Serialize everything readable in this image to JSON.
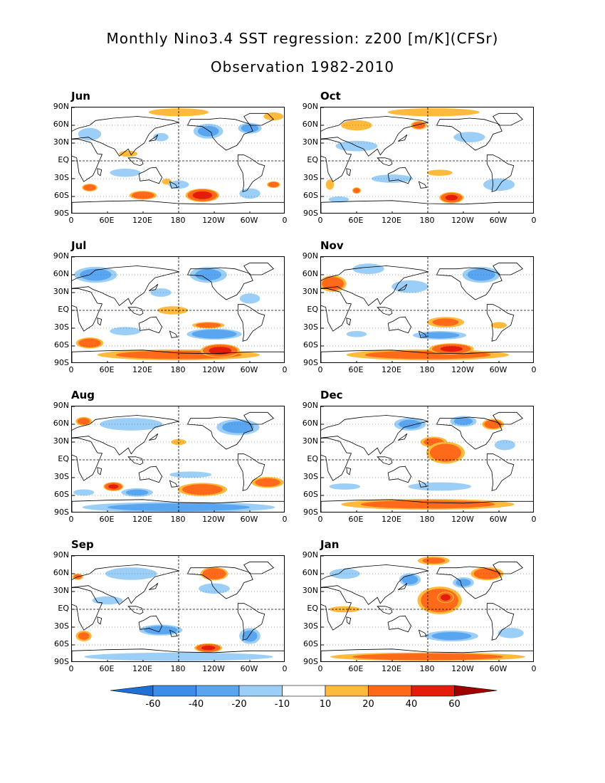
{
  "title_line1": "Monthly Nino3.4 SST regression: z200 [m/K](CFSr)",
  "title_line2": "Observation 1982-2010",
  "y_ticks": [
    "90N",
    "60N",
    "30N",
    "EQ",
    "30S",
    "60S",
    "90S"
  ],
  "x_ticks": [
    "0",
    "60E",
    "120E",
    "180",
    "120W",
    "60W",
    "0"
  ],
  "panels": [
    {
      "month": "Jun",
      "blobs": [
        {
          "lon": 95,
          "lat": 12,
          "rx": 18,
          "ry": 6,
          "v": 15
        },
        {
          "lon": 30,
          "lat": -45,
          "rx": 14,
          "ry": 7,
          "v": 30
        },
        {
          "lon": 120,
          "lat": -58,
          "rx": 25,
          "ry": 8,
          "v": 30
        },
        {
          "lon": 220,
          "lat": -58,
          "rx": 30,
          "ry": 12,
          "v": 45
        },
        {
          "lon": 340,
          "lat": -40,
          "rx": 12,
          "ry": 6,
          "v": 30
        },
        {
          "lon": 160,
          "lat": -35,
          "rx": 10,
          "ry": 6,
          "v": 12
        },
        {
          "lon": 180,
          "lat": 82,
          "rx": 60,
          "ry": 8,
          "v": 12
        },
        {
          "lon": 340,
          "lat": 75,
          "rx": 20,
          "ry": 8,
          "v": 12
        },
        {
          "lon": 30,
          "lat": 45,
          "rx": 22,
          "ry": 12,
          "v": -18
        },
        {
          "lon": 230,
          "lat": 50,
          "rx": 28,
          "ry": 14,
          "v": -20
        },
        {
          "lon": 300,
          "lat": 55,
          "rx": 22,
          "ry": 10,
          "v": -22
        },
        {
          "lon": 90,
          "lat": -20,
          "rx": 30,
          "ry": 8,
          "v": -15
        },
        {
          "lon": 180,
          "lat": -40,
          "rx": 20,
          "ry": 8,
          "v": -15
        },
        {
          "lon": 300,
          "lat": -55,
          "rx": 20,
          "ry": 10,
          "v": -18
        },
        {
          "lon": 150,
          "lat": 40,
          "rx": 15,
          "ry": 8,
          "v": -15
        }
      ]
    },
    {
      "month": "Oct",
      "blobs": [
        {
          "lon": 190,
          "lat": 82,
          "rx": 90,
          "ry": 8,
          "v": 14
        },
        {
          "lon": 60,
          "lat": 60,
          "rx": 30,
          "ry": 10,
          "v": 15
        },
        {
          "lon": 165,
          "lat": 60,
          "rx": 15,
          "ry": 8,
          "v": 25
        },
        {
          "lon": 200,
          "lat": -20,
          "rx": 25,
          "ry": 6,
          "v": 14
        },
        {
          "lon": 60,
          "lat": -50,
          "rx": 8,
          "ry": 6,
          "v": 25
        },
        {
          "lon": 220,
          "lat": -62,
          "rx": 22,
          "ry": 10,
          "v": 40
        },
        {
          "lon": 15,
          "lat": -40,
          "rx": 8,
          "ry": 10,
          "v": 14
        },
        {
          "lon": 60,
          "lat": 25,
          "rx": 40,
          "ry": 10,
          "v": -18
        },
        {
          "lon": 250,
          "lat": 40,
          "rx": 30,
          "ry": 10,
          "v": -18
        },
        {
          "lon": 120,
          "lat": -30,
          "rx": 40,
          "ry": 8,
          "v": -16
        },
        {
          "lon": 300,
          "lat": -40,
          "rx": 30,
          "ry": 12,
          "v": -18
        },
        {
          "lon": 30,
          "lat": -65,
          "rx": 20,
          "ry": 6,
          "v": -14
        }
      ]
    },
    {
      "month": "Jul",
      "blobs": [
        {
          "lon": 230,
          "lat": -25,
          "rx": 30,
          "ry": 6,
          "v": 25
        },
        {
          "lon": 170,
          "lat": 0,
          "rx": 30,
          "ry": 8,
          "v": 14
        },
        {
          "lon": 30,
          "lat": -55,
          "rx": 25,
          "ry": 10,
          "v": 30
        },
        {
          "lon": 180,
          "lat": -75,
          "rx": 150,
          "ry": 10,
          "v": 25
        },
        {
          "lon": 250,
          "lat": -68,
          "rx": 35,
          "ry": 12,
          "v": 45
        },
        {
          "lon": 240,
          "lat": -40,
          "rx": 50,
          "ry": 10,
          "v": -30
        },
        {
          "lon": 90,
          "lat": -35,
          "rx": 30,
          "ry": 8,
          "v": -15
        },
        {
          "lon": 40,
          "lat": 60,
          "rx": 40,
          "ry": 15,
          "v": -22
        },
        {
          "lon": 230,
          "lat": 60,
          "rx": 35,
          "ry": 15,
          "v": -20
        },
        {
          "lon": 150,
          "lat": 30,
          "rx": 20,
          "ry": 8,
          "v": -18
        },
        {
          "lon": 300,
          "lat": 20,
          "rx": 20,
          "ry": 10,
          "v": -14
        }
      ]
    },
    {
      "month": "Nov",
      "blobs": [
        {
          "lon": 20,
          "lat": 45,
          "rx": 25,
          "ry": 15,
          "v": 28
        },
        {
          "lon": 210,
          "lat": -20,
          "rx": 35,
          "ry": 10,
          "v": 20
        },
        {
          "lon": 300,
          "lat": -25,
          "rx": 15,
          "ry": 6,
          "v": 18
        },
        {
          "lon": 180,
          "lat": -75,
          "rx": 150,
          "ry": 10,
          "v": 25
        },
        {
          "lon": 220,
          "lat": -65,
          "rx": 40,
          "ry": 10,
          "v": 40
        },
        {
          "lon": 200,
          "lat": -42,
          "rx": 50,
          "ry": 8,
          "v": -22
        },
        {
          "lon": 150,
          "lat": 40,
          "rx": 35,
          "ry": 12,
          "v": -18
        },
        {
          "lon": 270,
          "lat": 60,
          "rx": 35,
          "ry": 15,
          "v": -22
        },
        {
          "lon": 80,
          "lat": 70,
          "rx": 30,
          "ry": 10,
          "v": -18
        },
        {
          "lon": 60,
          "lat": -40,
          "rx": 20,
          "ry": 6,
          "v": -14
        }
      ]
    },
    {
      "month": "Aug",
      "blobs": [
        {
          "lon": 20,
          "lat": 65,
          "rx": 15,
          "ry": 8,
          "v": 25
        },
        {
          "lon": 70,
          "lat": -45,
          "rx": 18,
          "ry": 8,
          "v": 40
        },
        {
          "lon": 220,
          "lat": -50,
          "rx": 45,
          "ry": 12,
          "v": 30
        },
        {
          "lon": 330,
          "lat": -38,
          "rx": 30,
          "ry": 10,
          "v": 25
        },
        {
          "lon": 180,
          "lat": 30,
          "rx": 15,
          "ry": 6,
          "v": 12
        },
        {
          "lon": 180,
          "lat": -80,
          "rx": 180,
          "ry": 10,
          "v": -22
        },
        {
          "lon": 110,
          "lat": -55,
          "rx": 30,
          "ry": 8,
          "v": -20
        },
        {
          "lon": 200,
          "lat": -25,
          "rx": 40,
          "ry": 6,
          "v": -18
        },
        {
          "lon": 100,
          "lat": 60,
          "rx": 60,
          "ry": 12,
          "v": -18
        },
        {
          "lon": 280,
          "lat": 55,
          "rx": 40,
          "ry": 15,
          "v": -22
        },
        {
          "lon": 20,
          "lat": -55,
          "rx": 20,
          "ry": 6,
          "v": -16
        }
      ]
    },
    {
      "month": "Dec",
      "blobs": [
        {
          "lon": 210,
          "lat": 12,
          "rx": 35,
          "ry": 20,
          "v": 30
        },
        {
          "lon": 190,
          "lat": 30,
          "rx": 25,
          "ry": 10,
          "v": 22
        },
        {
          "lon": 290,
          "lat": 60,
          "rx": 20,
          "ry": 10,
          "v": 28
        },
        {
          "lon": 180,
          "lat": -75,
          "rx": 160,
          "ry": 10,
          "v": 25
        },
        {
          "lon": 150,
          "lat": 60,
          "rx": 30,
          "ry": 12,
          "v": -20
        },
        {
          "lon": 240,
          "lat": 65,
          "rx": 25,
          "ry": 10,
          "v": -20
        },
        {
          "lon": 200,
          "lat": -45,
          "rx": 60,
          "ry": 8,
          "v": -18
        },
        {
          "lon": 40,
          "lat": -45,
          "rx": 30,
          "ry": 6,
          "v": -16
        },
        {
          "lon": 310,
          "lat": 25,
          "rx": 20,
          "ry": 10,
          "v": -16
        }
      ]
    },
    {
      "month": "Sep",
      "blobs": [
        {
          "lon": 240,
          "lat": 60,
          "rx": 25,
          "ry": 12,
          "v": 35
        },
        {
          "lon": 230,
          "lat": -65,
          "rx": 25,
          "ry": 8,
          "v": 40
        },
        {
          "lon": 20,
          "lat": -45,
          "rx": 15,
          "ry": 10,
          "v": 20
        },
        {
          "lon": 10,
          "lat": 55,
          "rx": 10,
          "ry": 6,
          "v": 22
        },
        {
          "lon": 180,
          "lat": -80,
          "rx": 180,
          "ry": 8,
          "v": -18
        },
        {
          "lon": 150,
          "lat": -35,
          "rx": 40,
          "ry": 10,
          "v": -25
        },
        {
          "lon": 300,
          "lat": -45,
          "rx": 20,
          "ry": 15,
          "v": -20
        },
        {
          "lon": 100,
          "lat": 60,
          "rx": 50,
          "ry": 12,
          "v": -16
        },
        {
          "lon": 60,
          "lat": 15,
          "rx": 30,
          "ry": 8,
          "v": -14
        },
        {
          "lon": 240,
          "lat": 35,
          "rx": 30,
          "ry": 10,
          "v": -16
        }
      ]
    },
    {
      "month": "Jan",
      "blobs": [
        {
          "lon": 200,
          "lat": 15,
          "rx": 40,
          "ry": 25,
          "v": 35
        },
        {
          "lon": 210,
          "lat": 20,
          "rx": 15,
          "ry": 10,
          "v": 45
        },
        {
          "lon": 280,
          "lat": 60,
          "rx": 30,
          "ry": 12,
          "v": 30
        },
        {
          "lon": 180,
          "lat": -80,
          "rx": 180,
          "ry": 8,
          "v": 25
        },
        {
          "lon": 40,
          "lat": 0,
          "rx": 30,
          "ry": 6,
          "v": 16
        },
        {
          "lon": 190,
          "lat": 82,
          "rx": 30,
          "ry": 8,
          "v": 20
        },
        {
          "lon": 150,
          "lat": 50,
          "rx": 20,
          "ry": 12,
          "v": -22
        },
        {
          "lon": 240,
          "lat": 45,
          "rx": 20,
          "ry": 10,
          "v": -20
        },
        {
          "lon": 220,
          "lat": -45,
          "rx": 50,
          "ry": 10,
          "v": -22
        },
        {
          "lon": 40,
          "lat": 60,
          "rx": 30,
          "ry": 10,
          "v": -14
        },
        {
          "lon": 320,
          "lat": -40,
          "rx": 25,
          "ry": 10,
          "v": -16
        }
      ]
    }
  ],
  "colorbar": {
    "labels": [
      "-60",
      "-40",
      "-20",
      "-10",
      "10",
      "20",
      "40",
      "60"
    ],
    "colors": [
      "#1e6fd6",
      "#3d8de8",
      "#5aa5ef",
      "#9ccff8",
      "#ffffff",
      "#ffb93c",
      "#ff6a1a",
      "#e41c0a",
      "#a00000"
    ]
  },
  "levels": [
    -60,
    -40,
    -20,
    -10,
    10,
    20,
    40,
    60
  ]
}
